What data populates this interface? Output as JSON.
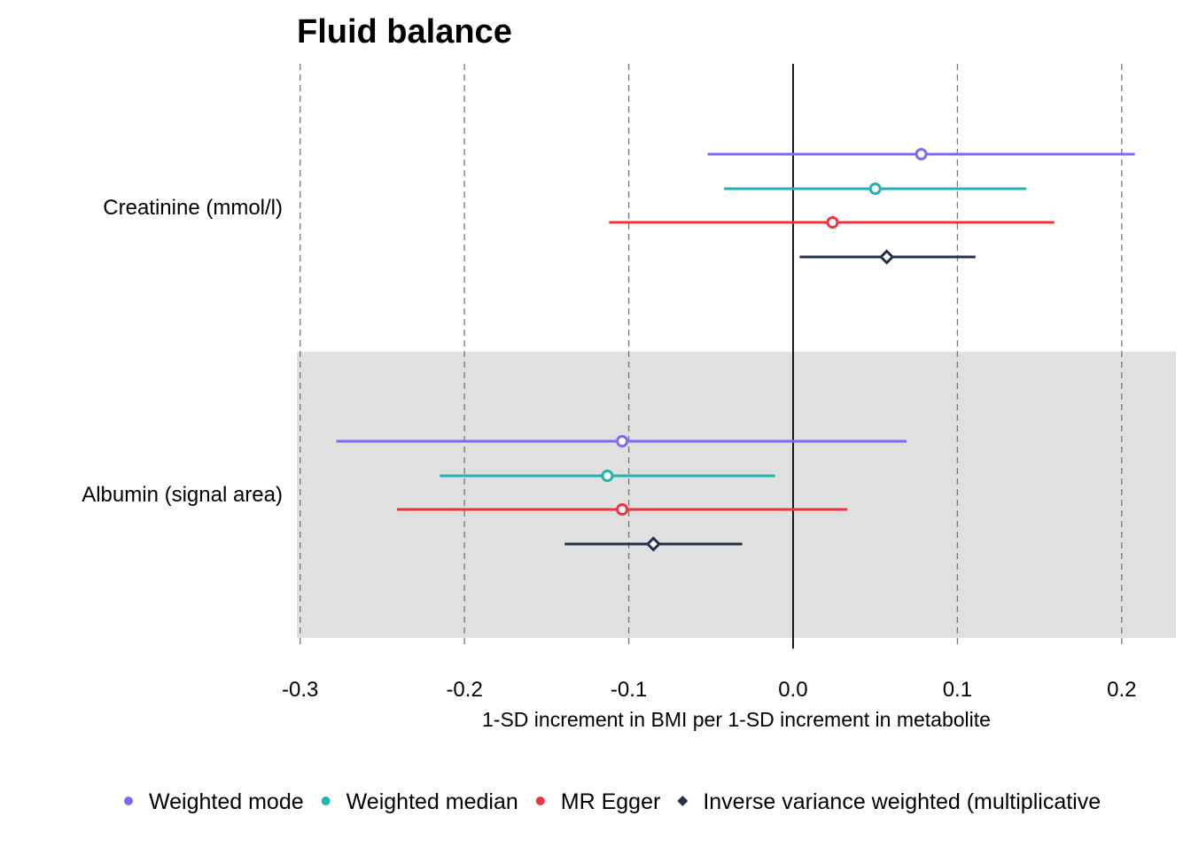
{
  "chart_data": {
    "type": "forest",
    "title": "Fluid balance",
    "xlabel": "1-SD increment in BMI per 1-SD increment in metabolite",
    "xlim": [
      -0.302,
      0.233
    ],
    "xticks": [
      -0.3,
      -0.2,
      -0.1,
      0.0,
      0.1,
      0.2
    ],
    "xtick_labels": [
      "-0.3",
      "-0.2",
      "-0.1",
      "0.0",
      "0.1",
      "0.2"
    ],
    "reference_line": 0.0,
    "grid": "vertical dashed at x ticks",
    "legend_position": "bottom",
    "categories": [
      "Creatinine (mmol/l)",
      "Albumin (signal area)"
    ],
    "shaded_rows": [
      "Albumin (signal area)"
    ],
    "series": [
      {
        "name": "Weighted mode",
        "color": "#7b6cf6",
        "marker": "circle",
        "points": [
          {
            "category": "Creatinine (mmol/l)",
            "estimate": 0.078,
            "lower": -0.052,
            "upper": 0.208
          },
          {
            "category": "Albumin (signal area)",
            "estimate": -0.104,
            "lower": -0.278,
            "upper": 0.069
          }
        ]
      },
      {
        "name": "Weighted median",
        "color": "#1db5ad",
        "marker": "circle",
        "points": [
          {
            "category": "Creatinine (mmol/l)",
            "estimate": 0.05,
            "lower": -0.042,
            "upper": 0.142
          },
          {
            "category": "Albumin (signal area)",
            "estimate": -0.113,
            "lower": -0.215,
            "upper": -0.011
          }
        ]
      },
      {
        "name": "MR Egger",
        "color": "#f0323f",
        "marker": "circle",
        "points": [
          {
            "category": "Creatinine (mmol/l)",
            "estimate": 0.024,
            "lower": -0.112,
            "upper": 0.159
          },
          {
            "category": "Albumin (signal area)",
            "estimate": -0.104,
            "lower": -0.241,
            "upper": 0.033
          }
        ]
      },
      {
        "name": "Inverse variance weighted (multiplicative",
        "color": "#262f4a",
        "marker": "diamond",
        "points": [
          {
            "category": "Creatinine (mmol/l)",
            "estimate": 0.057,
            "lower": 0.004,
            "upper": 0.111
          },
          {
            "category": "Albumin (signal area)",
            "estimate": -0.085,
            "lower": -0.139,
            "upper": -0.031
          }
        ]
      }
    ]
  }
}
